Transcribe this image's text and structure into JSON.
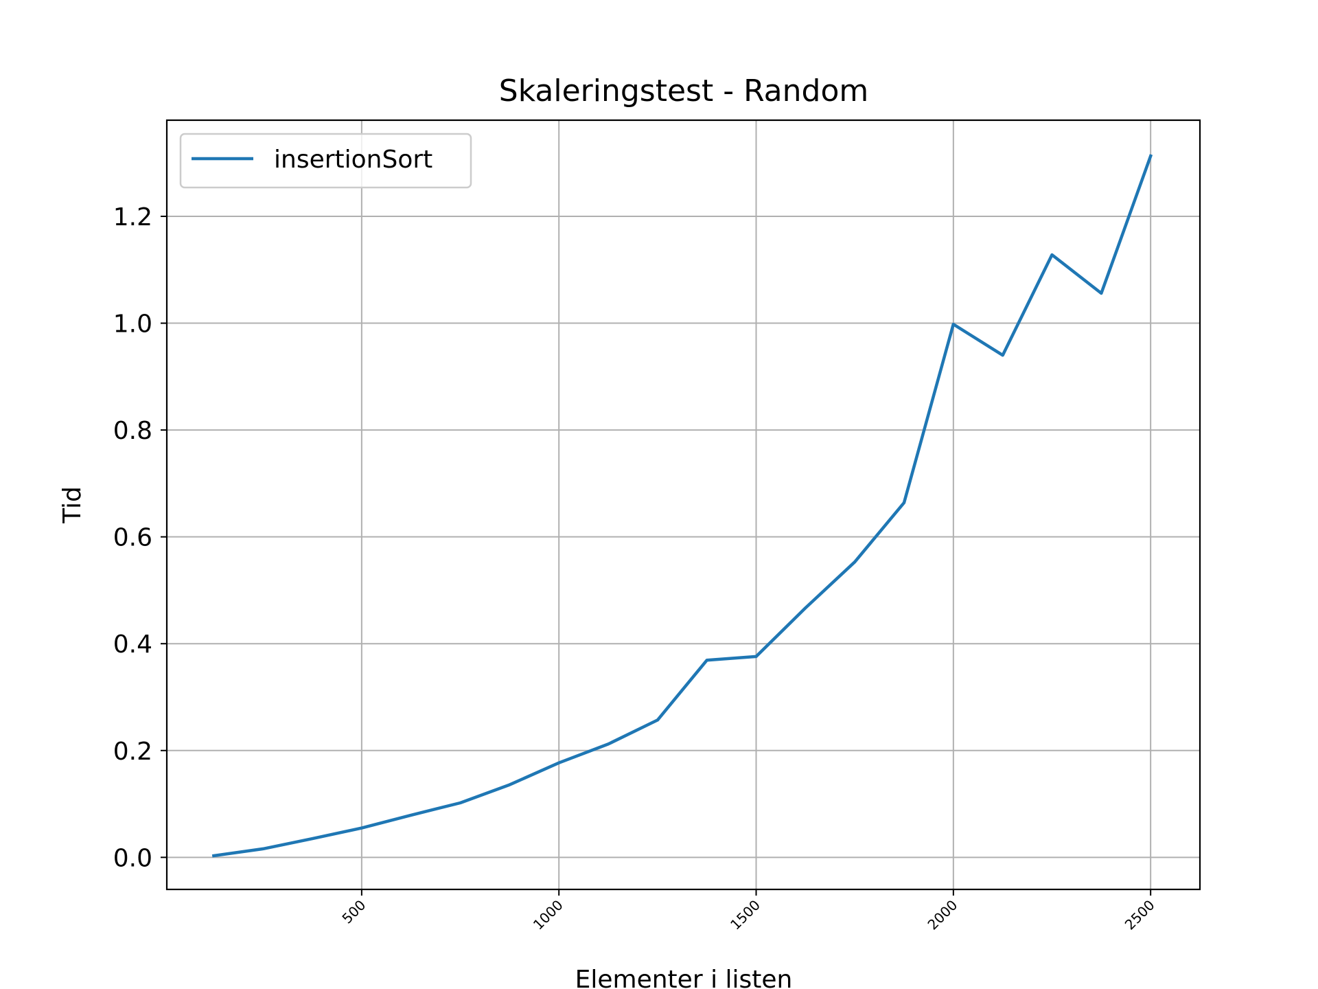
{
  "chart_data": {
    "type": "line",
    "title": "Skaleringstest - Random",
    "xlabel": "Elementer i listen",
    "ylabel": "Tid",
    "xlim": [
      6,
      2625
    ],
    "ylim": [
      -0.06,
      1.38
    ],
    "xticks": [
      500,
      1000,
      1500,
      2000,
      2500
    ],
    "xtick_labels": [
      "500",
      "1000",
      "1500",
      "2000",
      "2500"
    ],
    "xtick_rotation": 45,
    "yticks": [
      0.0,
      0.2,
      0.4,
      0.6,
      0.8,
      1.0,
      1.2
    ],
    "ytick_labels": [
      "0.0",
      "0.2",
      "0.4",
      "0.6",
      "0.8",
      "1.0",
      "1.2"
    ],
    "grid": true,
    "legend_position": "upper-left",
    "series": [
      {
        "name": "insertionSort",
        "color": "#1f77b4",
        "x": [
          125,
          250,
          375,
          500,
          625,
          750,
          875,
          1000,
          1125,
          1250,
          1375,
          1500,
          1625,
          1750,
          1875,
          2000,
          2125,
          2250,
          2375,
          2500
        ],
        "y": [
          0.003,
          0.016,
          0.035,
          0.055,
          0.079,
          0.102,
          0.136,
          0.177,
          0.212,
          0.257,
          0.369,
          0.376,
          0.467,
          0.553,
          0.664,
          0.998,
          0.94,
          1.128,
          1.056,
          1.313
        ]
      }
    ]
  }
}
